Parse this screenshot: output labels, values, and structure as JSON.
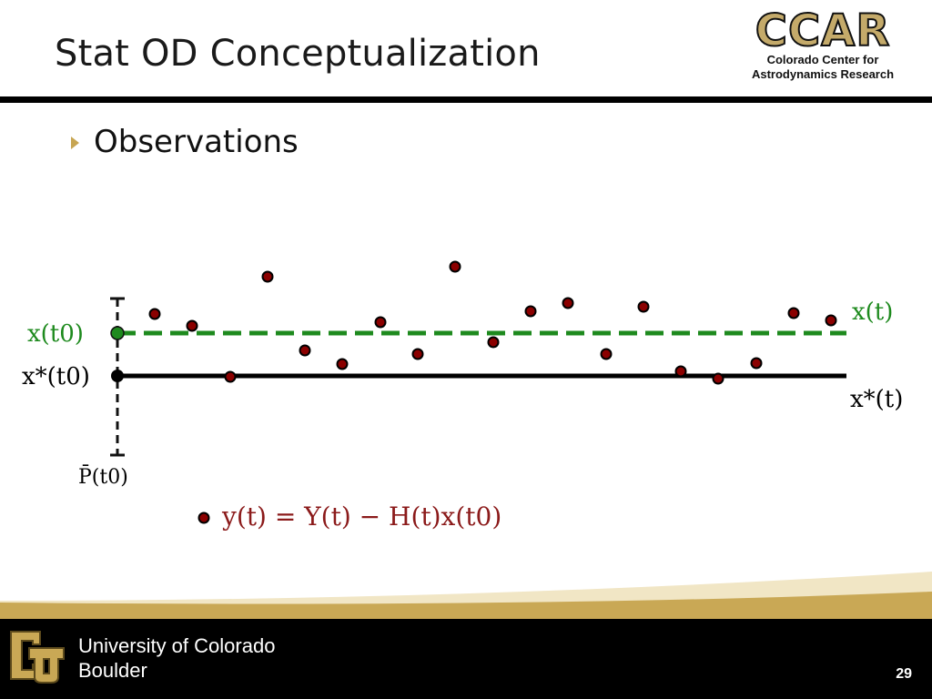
{
  "slide": {
    "title": "Stat OD Conceptualization",
    "bullet": "Observations",
    "page_number": "29"
  },
  "logo": {
    "acronym": "CCAR",
    "line1": "Colorado Center for",
    "line2": "Astrodynamics Research"
  },
  "footer": {
    "university_line1": "University of Colorado",
    "university_line2": "Boulder"
  },
  "diagram": {
    "labels": {
      "x_t0": "x(t0)",
      "xstar_t0": "x*(t0)",
      "x_t": "x(t)",
      "xstar_t": "x*(t)",
      "P_t0": "P̄(t0)",
      "equation": "y(t) = Y(t) − H(t)x(t0)"
    },
    "colors": {
      "estimate_line": "#1e8a1e",
      "reference_line": "#000000",
      "observation_dot": "#8b0000",
      "equation_text": "#8b1a1a",
      "gold_accent": "#c7a552"
    }
  }
}
